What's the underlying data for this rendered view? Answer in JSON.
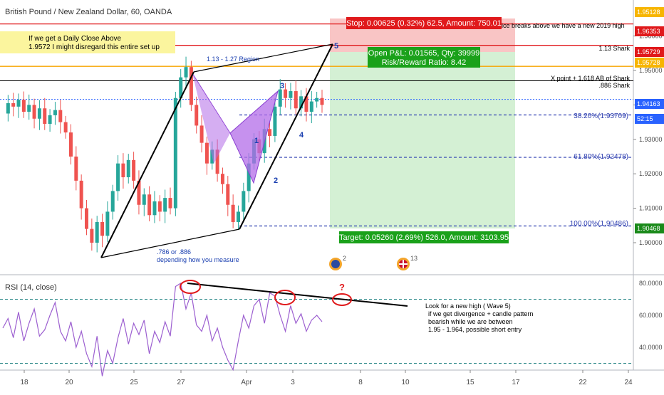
{
  "header": {
    "title": "British Pound / New Zealand Dollar, 60, OANDA"
  },
  "chart_data": [
    {
      "type": "candlestick",
      "title": "British Pound / New Zealand Dollar, 60, OANDA",
      "ylim": [
        1.895,
        1.955
      ],
      "y_ticks": [
        "1.90000",
        "1.91000",
        "1.92000",
        "1.93000",
        "1.94000",
        "1.95000",
        "1.96000"
      ],
      "x_ticks": [
        "18",
        "20",
        "25",
        "27",
        "Apr",
        "3",
        "8",
        "10",
        "15",
        "17",
        "22",
        "24"
      ],
      "price_path": [
        1.9375,
        1.9405,
        1.9395,
        1.9415,
        1.938,
        1.94,
        1.936,
        1.939,
        1.9345,
        1.937,
        1.9385,
        1.935,
        1.932,
        1.925,
        1.918,
        1.91,
        1.904,
        1.9,
        1.906,
        1.902,
        1.909,
        1.915,
        1.923,
        1.919,
        1.924,
        1.918,
        1.911,
        1.914,
        1.908,
        1.912,
        1.909,
        1.913,
        1.91,
        1.942,
        1.948,
        1.951,
        1.94,
        1.934,
        1.929,
        1.923,
        1.927,
        1.92,
        1.917,
        1.911,
        1.906,
        1.909,
        1.915,
        1.923,
        1.93,
        1.926,
        1.933,
        1.931,
        1.9395,
        1.9445,
        1.942,
        1.944,
        1.939,
        1.9425,
        1.938,
        1.941,
        1.942,
        1.94
      ],
      "price_labels": [
        {
          "text": "1.95128",
          "color": "#f7b500"
        },
        {
          "text": "1.96353",
          "color": "#e0191b"
        },
        {
          "text": "1.95729",
          "color": "#e0191b"
        },
        {
          "text": "1.95728",
          "color": "#f7b500"
        },
        {
          "text": "1.94163",
          "color": "#2962ff"
        },
        {
          "text": "52:15",
          "color": "#2962ff"
        },
        {
          "text": "1.90468",
          "color": "#1a8a1a"
        }
      ],
      "levels": {
        "red_top": 1.9635,
        "red_shark": 1.9573,
        "orange": 1.9512,
        "black": 1.947,
        "current": 1.9416,
        "fib382": 1.93709,
        "fib618": 1.92478,
        "fib100": 1.90486
      },
      "fib_labels": [
        "38.20%(1.93709)",
        "61.80%(1.92478)",
        "100.00%(1.90486)"
      ],
      "annotations": {
        "daily_close_note": [
          "If we get a Daily Close Above",
          "1.9572 I might disregard this entire set up"
        ],
        "region": "1.13 - 1.27 Region",
        "ratio_note": [
          ".786 or .886",
          "depending how you measure"
        ],
        "top_note": "ice breaks above  we have a new 2019 high",
        "shark_label": "1.13 Shark",
        "xpoint_label": [
          "X point + 1.618 AB of Shark",
          ".886 Shark"
        ],
        "wave_labels": [
          "1",
          "2",
          "3",
          "4",
          "5"
        ],
        "icon_counts": [
          "2",
          "13"
        ]
      },
      "position": {
        "stop": "Stop: 0.00625 (0.32%) 62.5, Amount: 750.01",
        "open_pl": "Open P&L: 0.01565, Qty: 39999",
        "risk_reward": "Risk/Reward Ratio: 8.42",
        "target": "Target: 0.05260 (2.69%) 526.0, Amount: 3103.95"
      }
    },
    {
      "type": "line",
      "title": "RSI (14, close)",
      "ylim": [
        20,
        88
      ],
      "y_ticks": [
        "80.0000",
        "60.0000",
        "40.0000"
      ],
      "levels": [
        70,
        30
      ],
      "values": [
        52,
        58,
        46,
        62,
        44,
        55,
        64,
        47,
        51,
        60,
        68,
        50,
        44,
        56,
        40,
        50,
        36,
        28,
        47,
        22,
        38,
        30,
        46,
        58,
        42,
        55,
        48,
        57,
        36,
        50,
        43,
        56,
        47,
        78,
        80,
        64,
        74,
        54,
        50,
        60,
        44,
        52,
        40,
        32,
        26,
        44,
        60,
        52,
        66,
        70,
        55,
        74,
        72,
        60,
        50,
        66,
        55,
        61,
        50,
        57,
        60,
        56
      ],
      "note": [
        "Look for a new high ( Wave 5)",
        "if we get divergence + candle pattern",
        "bearish while we are between",
        "1.95 - 1.964, possible short entry"
      ],
      "question": "?"
    }
  ]
}
